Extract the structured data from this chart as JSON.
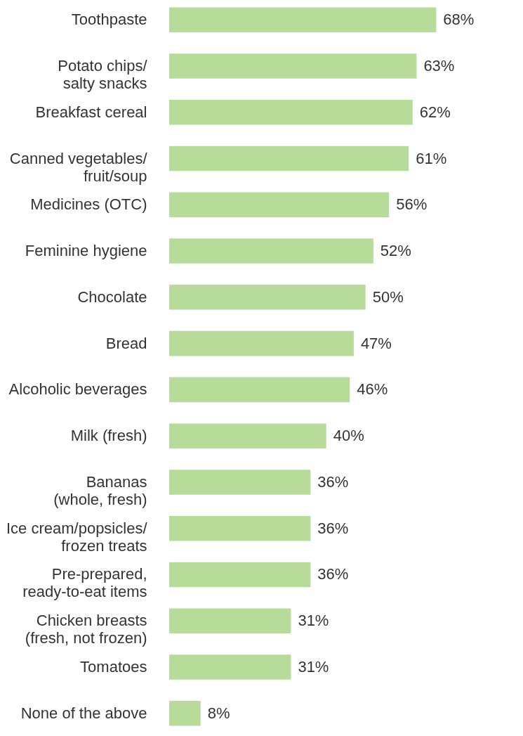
{
  "chart_data": {
    "type": "bar",
    "orientation": "horizontal",
    "color": "#b7dc9a",
    "categories": [
      "Toothpaste",
      "Potato chips/\nsalty snacks",
      "Breakfast cereal",
      "Canned vegetables/\nfruit/soup",
      "Medicines (OTC)",
      "Feminine hygiene",
      "Chocolate",
      "Bread",
      "Alcoholic beverages",
      "Milk (fresh)",
      "Bananas\n(whole, fresh)",
      "Ice cream/popsicles/\nfrozen treats",
      "Pre-prepared,\nready-to-eat items",
      "Chicken breasts\n(fresh, not frozen)",
      "Tomatoes",
      "None of the above"
    ],
    "values": [
      68,
      63,
      62,
      61,
      56,
      52,
      50,
      47,
      46,
      40,
      36,
      36,
      36,
      31,
      31,
      8
    ],
    "value_labels": [
      "68%",
      "63%",
      "62%",
      "61%",
      "56%",
      "52%",
      "50%",
      "47%",
      "46%",
      "40%",
      "36%",
      "36%",
      "36%",
      "31%",
      "31%",
      "8%"
    ]
  }
}
